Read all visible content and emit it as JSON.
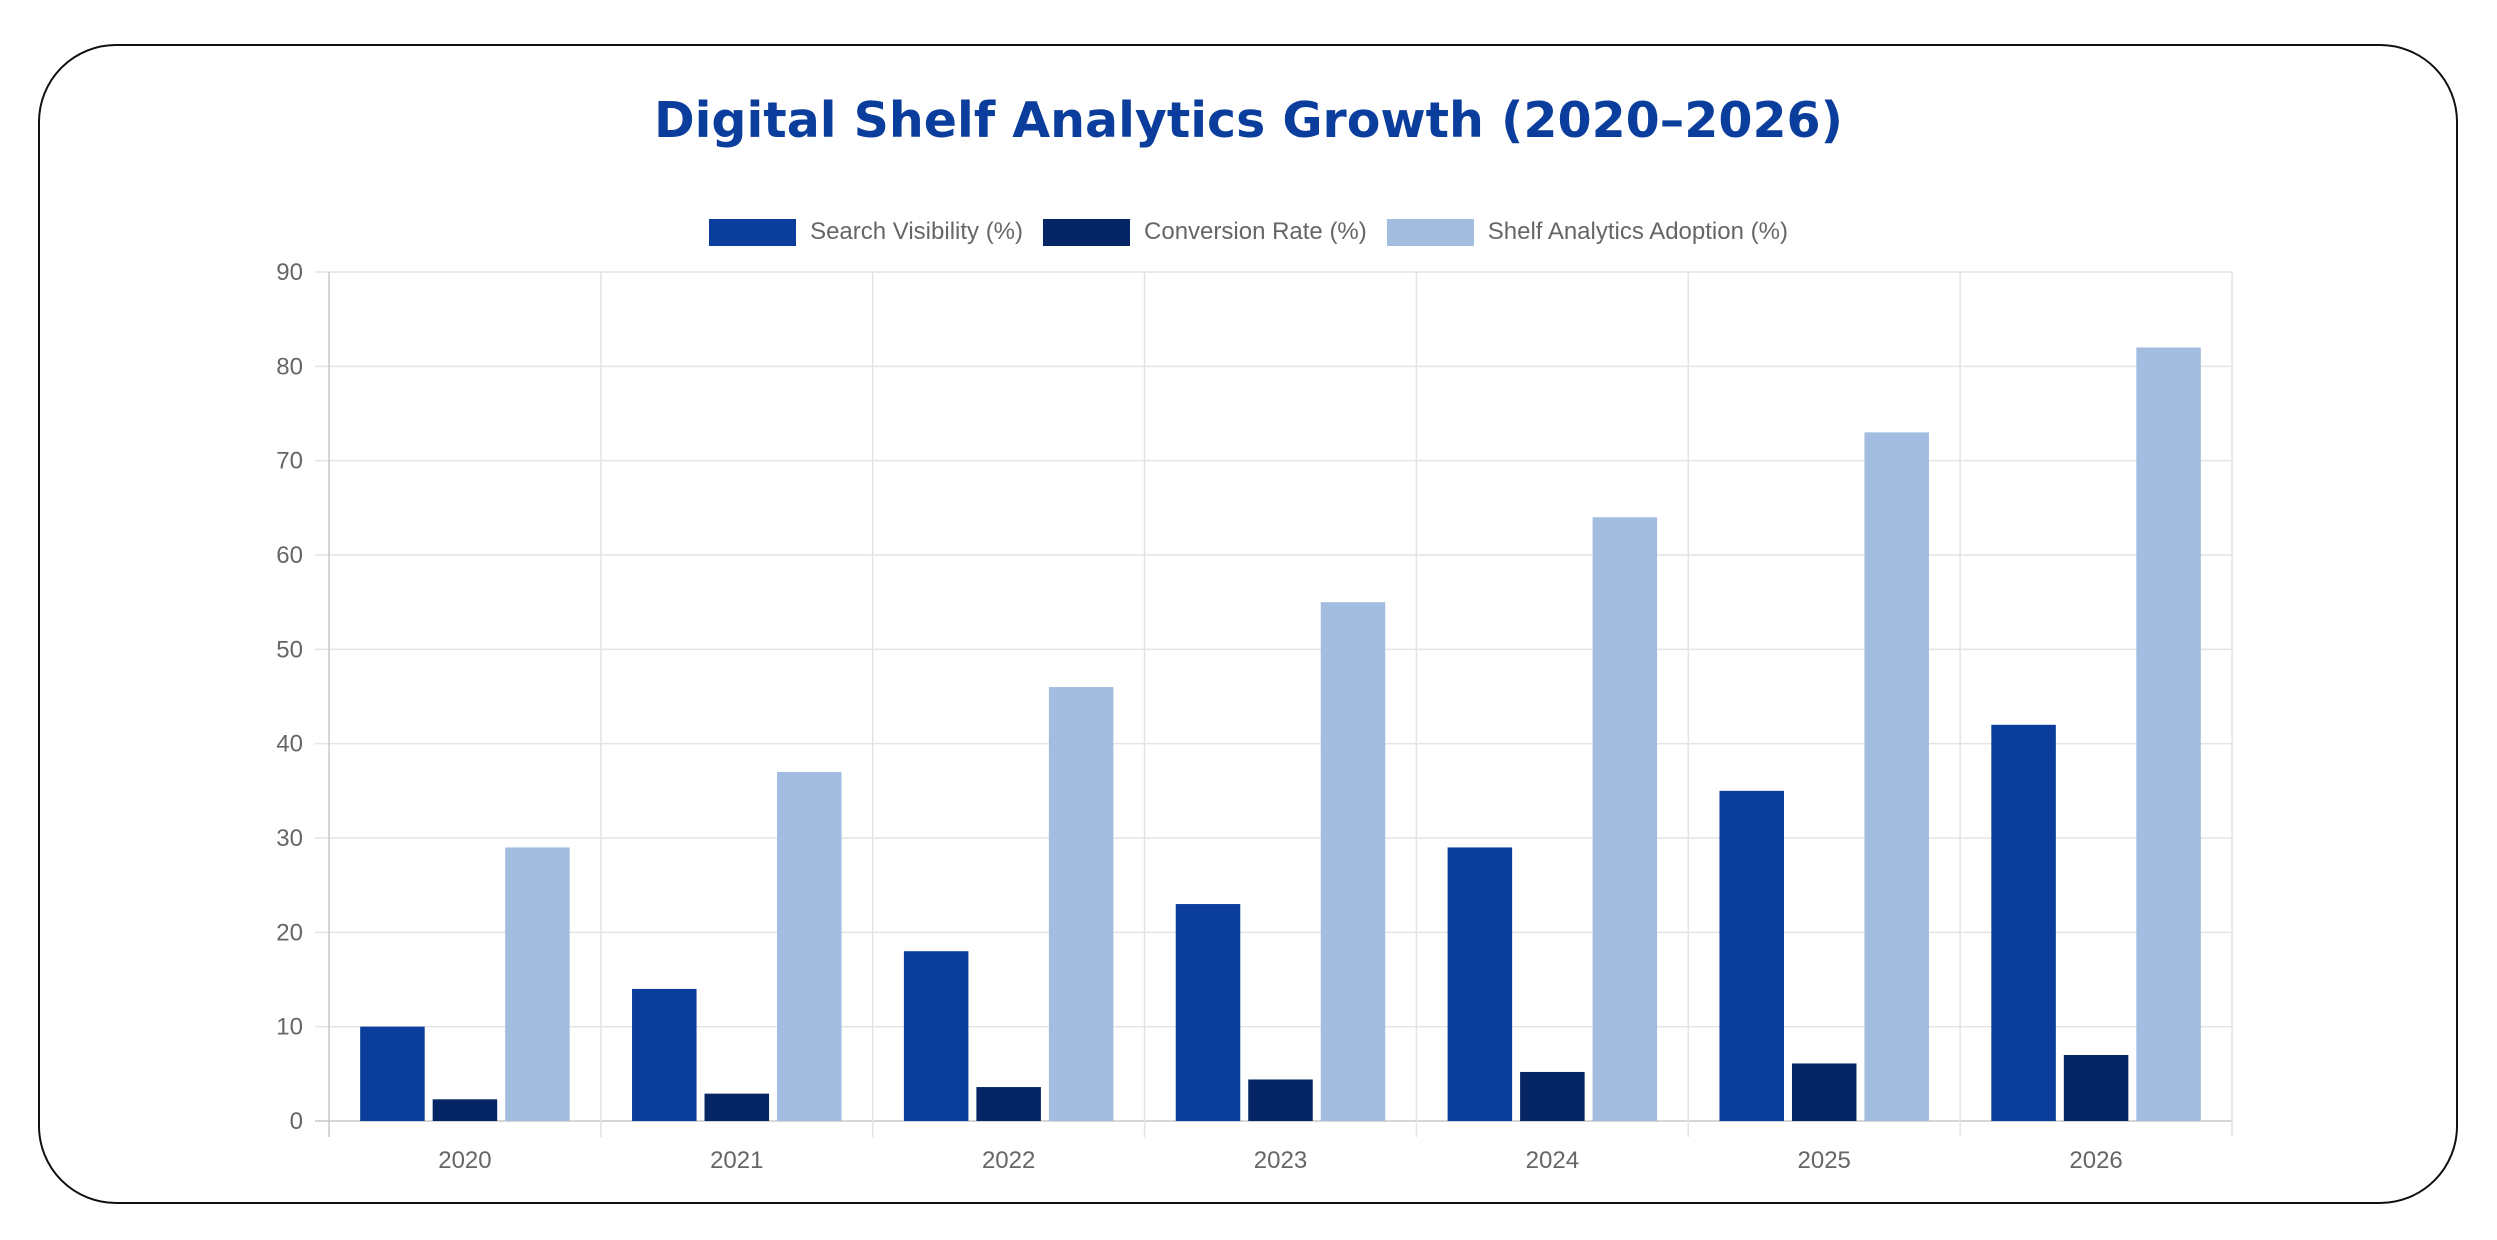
{
  "chart_data": {
    "type": "bar",
    "title": "Digital Shelf Analytics Growth (2020–2026)",
    "categories": [
      "2020",
      "2021",
      "2022",
      "2023",
      "2024",
      "2025",
      "2026"
    ],
    "series": [
      {
        "name": "Search Visibility (%)",
        "color": "#0a3d9c",
        "values": [
          10,
          14,
          18,
          23,
          29,
          35,
          42
        ]
      },
      {
        "name": "Conversion Rate (%)",
        "color": "#062564",
        "values": [
          2.3,
          2.9,
          3.6,
          4.4,
          5.2,
          6.1,
          7
        ]
      },
      {
        "name": "Shelf Analytics Adoption (%)",
        "color": "#a3bde0",
        "values": [
          29,
          37,
          46,
          55,
          64,
          73,
          82
        ]
      }
    ],
    "ylim": [
      0,
      90
    ],
    "yticks": [
      "0",
      "10",
      "20",
      "30",
      "40",
      "50",
      "60",
      "70",
      "80",
      "90"
    ],
    "grid": true,
    "legend": "top-center",
    "xlabel": "",
    "ylabel": ""
  }
}
